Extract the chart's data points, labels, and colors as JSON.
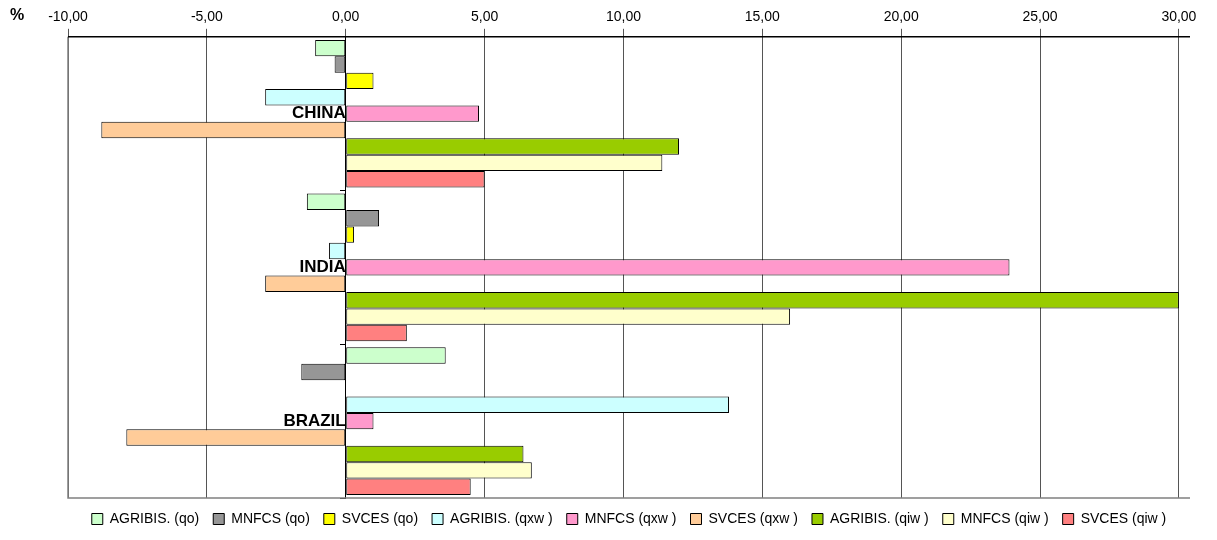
{
  "chart_data": {
    "type": "bar",
    "orientation": "horizontal",
    "xlabel": "%",
    "categories": [
      "CHINA",
      "INDIA",
      "BRAZIL"
    ],
    "xlim": [
      -10,
      30.4
    ],
    "xticks": [
      {
        "value": -10,
        "label": "-10,00"
      },
      {
        "value": -5,
        "label": "-5,00"
      },
      {
        "value": 0,
        "label": "0,00"
      },
      {
        "value": 5,
        "label": "5,00"
      },
      {
        "value": 10,
        "label": "10,00"
      },
      {
        "value": 15,
        "label": "15,00"
      },
      {
        "value": 20,
        "label": "20,00"
      },
      {
        "value": 25,
        "label": "25,00"
      },
      {
        "value": 30,
        "label": "30,00"
      }
    ],
    "grid": "x",
    "legend": "bottom",
    "series": [
      {
        "name": "AGRIBIS. (qo)",
        "color": "#ccffcc",
        "values": [
          -1.1,
          -1.4,
          3.6
        ]
      },
      {
        "name": "MNFCS (qo)",
        "color": "#969696",
        "values": [
          -0.4,
          1.2,
          -1.6
        ]
      },
      {
        "name": "SVCES (qo)",
        "color": "#ffff00",
        "values": [
          1.0,
          0.3,
          0
        ]
      },
      {
        "name": "AGRIBIS. (qxw )",
        "color": "#ccffff",
        "values": [
          -2.9,
          -0.6,
          13.8
        ]
      },
      {
        "name": "MNFCS (qxw )",
        "color": "#ff99cc",
        "values": [
          4.8,
          23.9,
          1.0
        ]
      },
      {
        "name": "SVCES (qxw )",
        "color": "#ffcc99",
        "values": [
          -8.8,
          -2.9,
          -7.9
        ]
      },
      {
        "name": "AGRIBIS. (qiw )",
        "color": "#99cc00",
        "values": [
          12.0,
          30.0,
          6.4
        ]
      },
      {
        "name": "MNFCS (qiw )",
        "color": "#ffffcc",
        "values": [
          11.4,
          16.0,
          6.7
        ]
      },
      {
        "name": "SVCES (qiw )",
        "color": "#ff8080",
        "values": [
          5.0,
          2.2,
          4.5
        ]
      }
    ]
  }
}
